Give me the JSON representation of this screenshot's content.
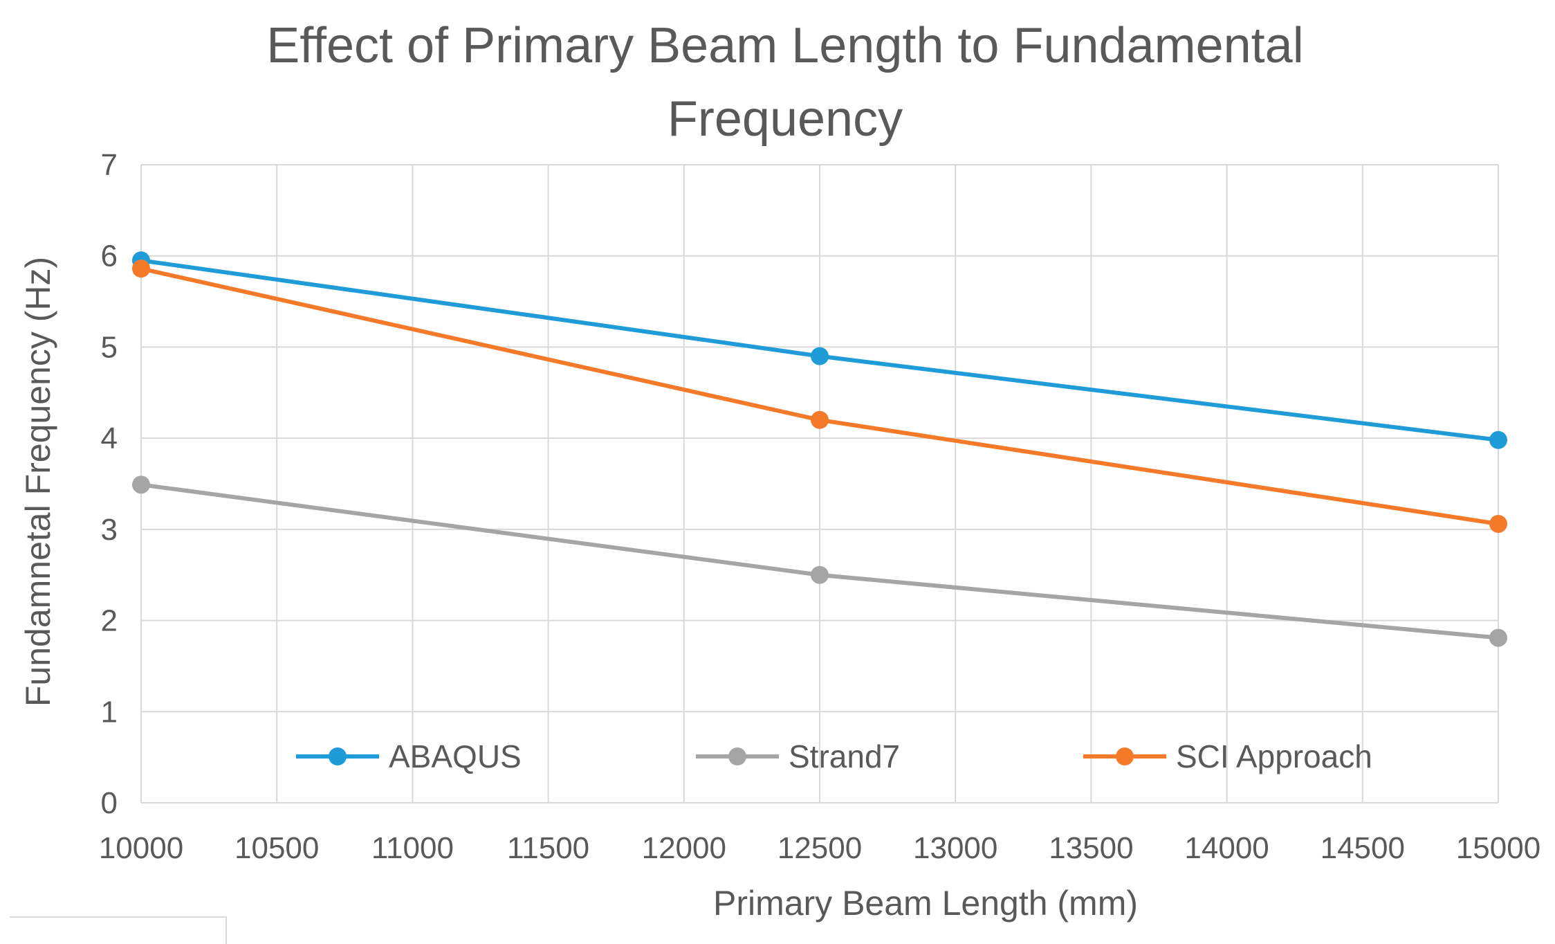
{
  "chart_data": {
    "type": "line",
    "title_lines": [
      "Effect of Primary Beam Length to Fundamental",
      "Frequency"
    ],
    "xlabel": "Primary Beam Length (mm)",
    "ylabel": "Fundamnetal Frequency (Hz)",
    "xlim": [
      10000,
      15000
    ],
    "ylim": [
      0,
      7
    ],
    "x_ticks": [
      10000,
      10500,
      11000,
      11500,
      12000,
      12500,
      13000,
      13500,
      14000,
      14500,
      15000
    ],
    "y_ticks": [
      0,
      1,
      2,
      3,
      4,
      5,
      6,
      7
    ],
    "grid": true,
    "legend_position": "bottom-inside",
    "x": [
      10000,
      12500,
      15000
    ],
    "series": [
      {
        "name": "ABAQUS",
        "color": "#1f9bd7",
        "values": [
          5.95,
          4.9,
          3.98
        ]
      },
      {
        "name": "Strand7",
        "color": "#a5a5a5",
        "values": [
          3.49,
          2.5,
          1.81
        ]
      },
      {
        "name": "SCI Approach",
        "color": "#f47a2a",
        "values": [
          5.86,
          4.2,
          3.06
        ]
      }
    ]
  }
}
